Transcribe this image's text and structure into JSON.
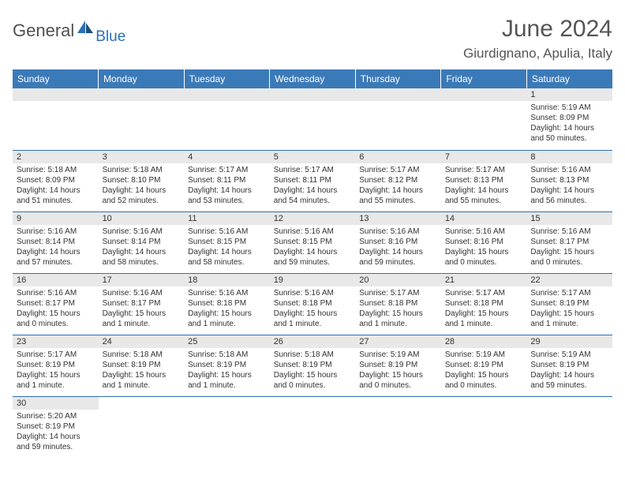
{
  "logo": {
    "main": "General",
    "sub": "Blue"
  },
  "title": "June 2024",
  "location": "Giurdignano, Apulia, Italy",
  "colors": {
    "header_bg": "#3b7ab8",
    "header_fg": "#ffffff",
    "rule": "#2a71b8",
    "daynum_bg": "#e8e8e8",
    "logo_gray": "#505050",
    "logo_blue": "#2a71b8"
  },
  "day_headers": [
    "Sunday",
    "Monday",
    "Tuesday",
    "Wednesday",
    "Thursday",
    "Friday",
    "Saturday"
  ],
  "weeks": [
    [
      null,
      null,
      null,
      null,
      null,
      null,
      {
        "n": "1",
        "sr": "Sunrise: 5:19 AM",
        "ss": "Sunset: 8:09 PM",
        "dl": "Daylight: 14 hours and 50 minutes."
      }
    ],
    [
      {
        "n": "2",
        "sr": "Sunrise: 5:18 AM",
        "ss": "Sunset: 8:09 PM",
        "dl": "Daylight: 14 hours and 51 minutes."
      },
      {
        "n": "3",
        "sr": "Sunrise: 5:18 AM",
        "ss": "Sunset: 8:10 PM",
        "dl": "Daylight: 14 hours and 52 minutes."
      },
      {
        "n": "4",
        "sr": "Sunrise: 5:17 AM",
        "ss": "Sunset: 8:11 PM",
        "dl": "Daylight: 14 hours and 53 minutes."
      },
      {
        "n": "5",
        "sr": "Sunrise: 5:17 AM",
        "ss": "Sunset: 8:11 PM",
        "dl": "Daylight: 14 hours and 54 minutes."
      },
      {
        "n": "6",
        "sr": "Sunrise: 5:17 AM",
        "ss": "Sunset: 8:12 PM",
        "dl": "Daylight: 14 hours and 55 minutes."
      },
      {
        "n": "7",
        "sr": "Sunrise: 5:17 AM",
        "ss": "Sunset: 8:13 PM",
        "dl": "Daylight: 14 hours and 55 minutes."
      },
      {
        "n": "8",
        "sr": "Sunrise: 5:16 AM",
        "ss": "Sunset: 8:13 PM",
        "dl": "Daylight: 14 hours and 56 minutes."
      }
    ],
    [
      {
        "n": "9",
        "sr": "Sunrise: 5:16 AM",
        "ss": "Sunset: 8:14 PM",
        "dl": "Daylight: 14 hours and 57 minutes."
      },
      {
        "n": "10",
        "sr": "Sunrise: 5:16 AM",
        "ss": "Sunset: 8:14 PM",
        "dl": "Daylight: 14 hours and 58 minutes."
      },
      {
        "n": "11",
        "sr": "Sunrise: 5:16 AM",
        "ss": "Sunset: 8:15 PM",
        "dl": "Daylight: 14 hours and 58 minutes."
      },
      {
        "n": "12",
        "sr": "Sunrise: 5:16 AM",
        "ss": "Sunset: 8:15 PM",
        "dl": "Daylight: 14 hours and 59 minutes."
      },
      {
        "n": "13",
        "sr": "Sunrise: 5:16 AM",
        "ss": "Sunset: 8:16 PM",
        "dl": "Daylight: 14 hours and 59 minutes."
      },
      {
        "n": "14",
        "sr": "Sunrise: 5:16 AM",
        "ss": "Sunset: 8:16 PM",
        "dl": "Daylight: 15 hours and 0 minutes."
      },
      {
        "n": "15",
        "sr": "Sunrise: 5:16 AM",
        "ss": "Sunset: 8:17 PM",
        "dl": "Daylight: 15 hours and 0 minutes."
      }
    ],
    [
      {
        "n": "16",
        "sr": "Sunrise: 5:16 AM",
        "ss": "Sunset: 8:17 PM",
        "dl": "Daylight: 15 hours and 0 minutes."
      },
      {
        "n": "17",
        "sr": "Sunrise: 5:16 AM",
        "ss": "Sunset: 8:17 PM",
        "dl": "Daylight: 15 hours and 1 minute."
      },
      {
        "n": "18",
        "sr": "Sunrise: 5:16 AM",
        "ss": "Sunset: 8:18 PM",
        "dl": "Daylight: 15 hours and 1 minute."
      },
      {
        "n": "19",
        "sr": "Sunrise: 5:16 AM",
        "ss": "Sunset: 8:18 PM",
        "dl": "Daylight: 15 hours and 1 minute."
      },
      {
        "n": "20",
        "sr": "Sunrise: 5:17 AM",
        "ss": "Sunset: 8:18 PM",
        "dl": "Daylight: 15 hours and 1 minute."
      },
      {
        "n": "21",
        "sr": "Sunrise: 5:17 AM",
        "ss": "Sunset: 8:18 PM",
        "dl": "Daylight: 15 hours and 1 minute."
      },
      {
        "n": "22",
        "sr": "Sunrise: 5:17 AM",
        "ss": "Sunset: 8:19 PM",
        "dl": "Daylight: 15 hours and 1 minute."
      }
    ],
    [
      {
        "n": "23",
        "sr": "Sunrise: 5:17 AM",
        "ss": "Sunset: 8:19 PM",
        "dl": "Daylight: 15 hours and 1 minute."
      },
      {
        "n": "24",
        "sr": "Sunrise: 5:18 AM",
        "ss": "Sunset: 8:19 PM",
        "dl": "Daylight: 15 hours and 1 minute."
      },
      {
        "n": "25",
        "sr": "Sunrise: 5:18 AM",
        "ss": "Sunset: 8:19 PM",
        "dl": "Daylight: 15 hours and 1 minute."
      },
      {
        "n": "26",
        "sr": "Sunrise: 5:18 AM",
        "ss": "Sunset: 8:19 PM",
        "dl": "Daylight: 15 hours and 0 minutes."
      },
      {
        "n": "27",
        "sr": "Sunrise: 5:19 AM",
        "ss": "Sunset: 8:19 PM",
        "dl": "Daylight: 15 hours and 0 minutes."
      },
      {
        "n": "28",
        "sr": "Sunrise: 5:19 AM",
        "ss": "Sunset: 8:19 PM",
        "dl": "Daylight: 15 hours and 0 minutes."
      },
      {
        "n": "29",
        "sr": "Sunrise: 5:19 AM",
        "ss": "Sunset: 8:19 PM",
        "dl": "Daylight: 14 hours and 59 minutes."
      }
    ],
    [
      {
        "n": "30",
        "sr": "Sunrise: 5:20 AM",
        "ss": "Sunset: 8:19 PM",
        "dl": "Daylight: 14 hours and 59 minutes."
      },
      null,
      null,
      null,
      null,
      null,
      null
    ]
  ]
}
